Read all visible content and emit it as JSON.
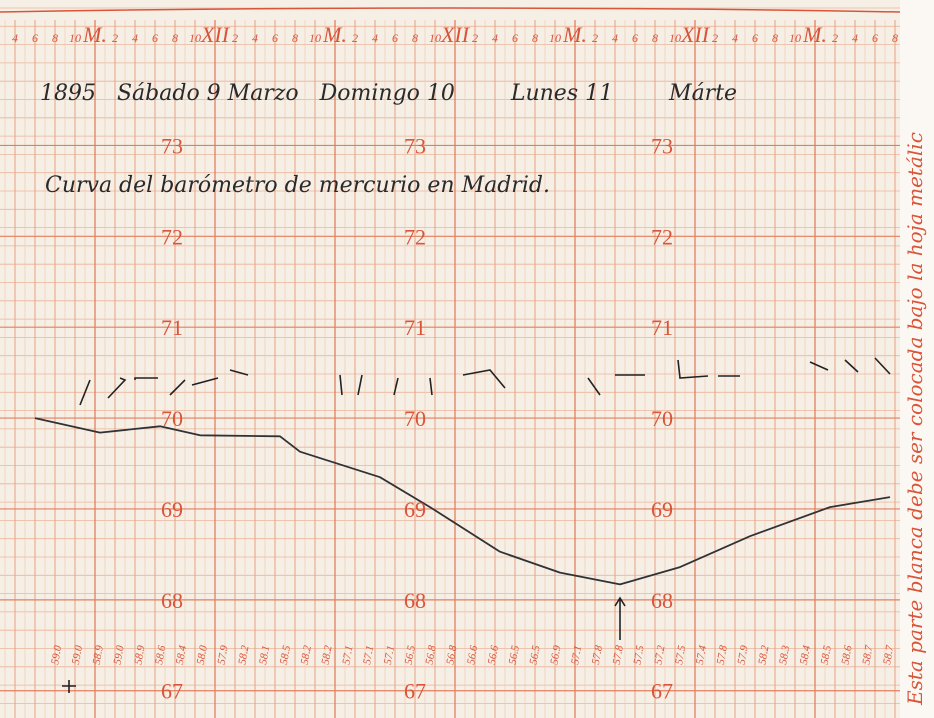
{
  "chart_data": {
    "type": "line",
    "header": "1895   Sábado 9 Marzo   Domingo 10        Lunes 11        Márte",
    "title": "Curva del barómetro de mercurio en Madrid.",
    "side_note": "Esta parte blanca debe ser colocada bajo la hoja metálic",
    "x": [
      -6,
      0.5,
      6.5,
      10.5,
      18.5,
      20.5,
      28.5,
      33.5,
      40.5,
      46.5,
      52.5,
      58.5,
      65.5,
      73.5,
      79.5
    ],
    "series": [
      {
        "color": "#2f3236",
        "values": [
          70.0,
          69.84,
          69.91,
          69.81,
          69.8,
          69.63,
          69.35,
          69.02,
          68.53,
          68.3,
          68.17,
          68.36,
          68.7,
          69.02,
          69.13
        ]
      }
    ],
    "xlim": [
      -9.5,
      80.5
    ],
    "ylim": [
      66.7,
      74.6
    ],
    "yticks": [
      67,
      68,
      69,
      70,
      71,
      72,
      73
    ],
    "xticks": [
      {
        "value": -8,
        "label": "4"
      },
      {
        "value": -6,
        "label": "6"
      },
      {
        "value": -4,
        "label": "8"
      },
      {
        "value": -2,
        "label": "10"
      },
      {
        "value": 0,
        "label": "M."
      },
      {
        "value": 2,
        "label": "2"
      },
      {
        "value": 4,
        "label": "4"
      },
      {
        "value": 6,
        "label": "6"
      },
      {
        "value": 8,
        "label": "8"
      },
      {
        "value": 10,
        "label": "10"
      },
      {
        "value": 12,
        "label": "XII"
      },
      {
        "value": 14,
        "label": "2"
      },
      {
        "value": 16,
        "label": "4"
      },
      {
        "value": 18,
        "label": "6"
      },
      {
        "value": 20,
        "label": "8"
      },
      {
        "value": 22,
        "label": "10"
      },
      {
        "value": 24,
        "label": "M."
      },
      {
        "value": 26,
        "label": "2"
      },
      {
        "value": 28,
        "label": "4"
      },
      {
        "value": 30,
        "label": "6"
      },
      {
        "value": 32,
        "label": "8"
      },
      {
        "value": 34,
        "label": "10"
      },
      {
        "value": 36,
        "label": "XII"
      },
      {
        "value": 38,
        "label": "2"
      },
      {
        "value": 40,
        "label": "4"
      },
      {
        "value": 42,
        "label": "6"
      },
      {
        "value": 44,
        "label": "8"
      },
      {
        "value": 46,
        "label": "10"
      },
      {
        "value": 48,
        "label": "M."
      },
      {
        "value": 50,
        "label": "2"
      },
      {
        "value": 52,
        "label": "4"
      },
      {
        "value": 54,
        "label": "6"
      },
      {
        "value": 56,
        "label": "8"
      },
      {
        "value": 58,
        "label": "10"
      },
      {
        "value": 60,
        "label": "XII"
      },
      {
        "value": 62,
        "label": "2"
      },
      {
        "value": 64,
        "label": "4"
      },
      {
        "value": 66,
        "label": "6"
      },
      {
        "value": 68,
        "label": "8"
      },
      {
        "value": 70,
        "label": "10"
      },
      {
        "value": 72,
        "label": "M."
      },
      {
        "value": 74,
        "label": "2"
      },
      {
        "value": 76,
        "label": "4"
      },
      {
        "value": 78,
        "label": "6"
      },
      {
        "value": 80,
        "label": "8"
      }
    ],
    "readings": [
      "59.0",
      "59.0",
      "58.9",
      "59.0",
      "58.9",
      "58.6",
      "58.4",
      "58.0",
      "57.9",
      "58.2",
      "58.1",
      "58.5",
      "58.2",
      "58.2",
      "57.1",
      "57.1",
      "57.1",
      "56.5",
      "56.8",
      "56.8",
      "56.6",
      "56.6",
      "56.5",
      "56.5",
      "56.9",
      "57.1",
      "57.8",
      "57.8",
      "57.5",
      "57.2",
      "57.5",
      "57.4",
      "57.8",
      "57.9",
      "58.2",
      "58.3",
      "58.4",
      "58.5",
      "58.6",
      "58.7",
      "58.7"
    ],
    "grid": true
  }
}
